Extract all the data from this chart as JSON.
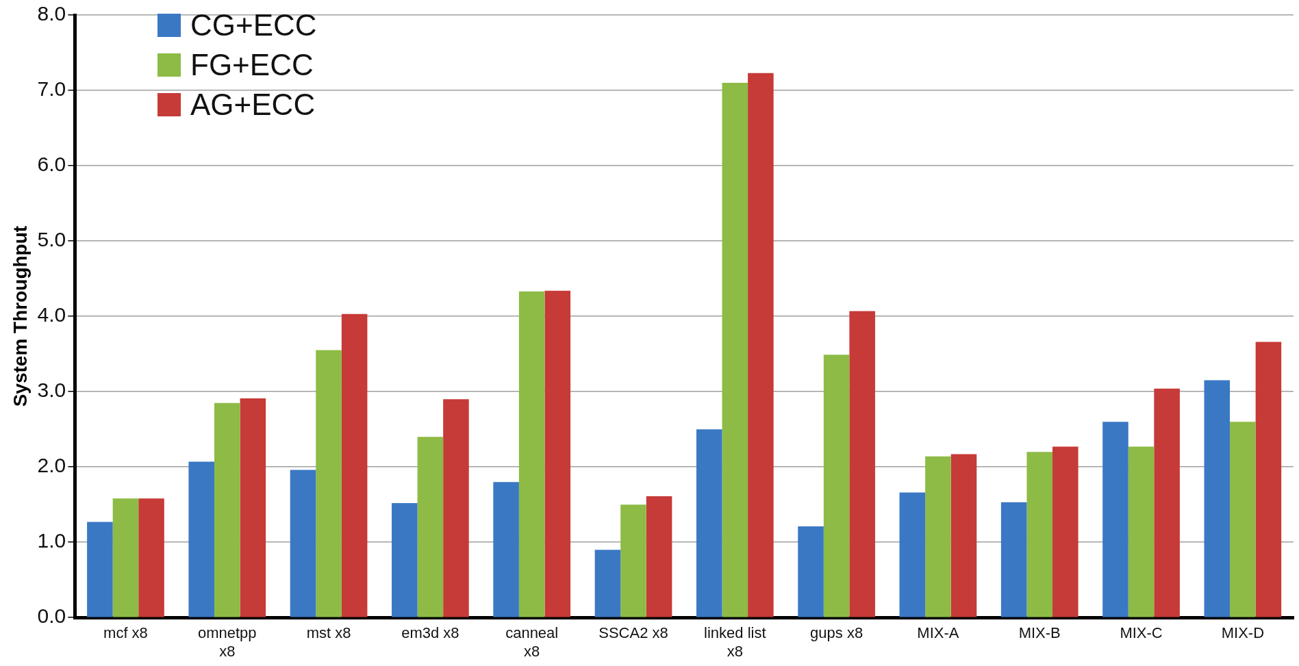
{
  "chart_data": {
    "type": "bar",
    "ylabel": "System Throughput",
    "categories": [
      "mcf x8",
      "omnetpp x8",
      "mst x8",
      "em3d x8",
      "canneal x8",
      "SSCA2 x8",
      "linked list x8",
      "gups x8",
      "MIX-A",
      "MIX-B",
      "MIX-C",
      "MIX-D"
    ],
    "series": [
      {
        "name": "CG+ECC",
        "color": "#3a78c4",
        "values": [
          1.27,
          2.07,
          1.96,
          1.52,
          1.8,
          0.9,
          2.5,
          1.21,
          1.66,
          1.53,
          2.6,
          3.15
        ]
      },
      {
        "name": "FG+ECC",
        "color": "#8dbb45",
        "values": [
          1.58,
          2.85,
          3.55,
          2.4,
          4.33,
          1.5,
          7.1,
          3.49,
          2.14,
          2.2,
          2.27,
          2.6
        ]
      },
      {
        "name": "AG+ECC",
        "color": "#c63a37",
        "values": [
          1.58,
          2.91,
          4.03,
          2.9,
          4.34,
          1.61,
          7.23,
          4.07,
          2.17,
          2.27,
          3.04,
          3.66
        ]
      }
    ],
    "ylim": [
      0,
      8
    ],
    "yticks": [
      {
        "value": 0,
        "label": "0.0"
      },
      {
        "value": 1,
        "label": "1.0"
      },
      {
        "value": 2,
        "label": "2.0"
      },
      {
        "value": 3,
        "label": "3.0"
      },
      {
        "value": 4,
        "label": "4.0"
      },
      {
        "value": 5,
        "label": "5.0"
      },
      {
        "value": 6,
        "label": "6.0"
      },
      {
        "value": 7,
        "label": "7.0"
      },
      {
        "value": 8,
        "label": "8.0"
      }
    ],
    "grid": "y",
    "legend": "top left"
  }
}
